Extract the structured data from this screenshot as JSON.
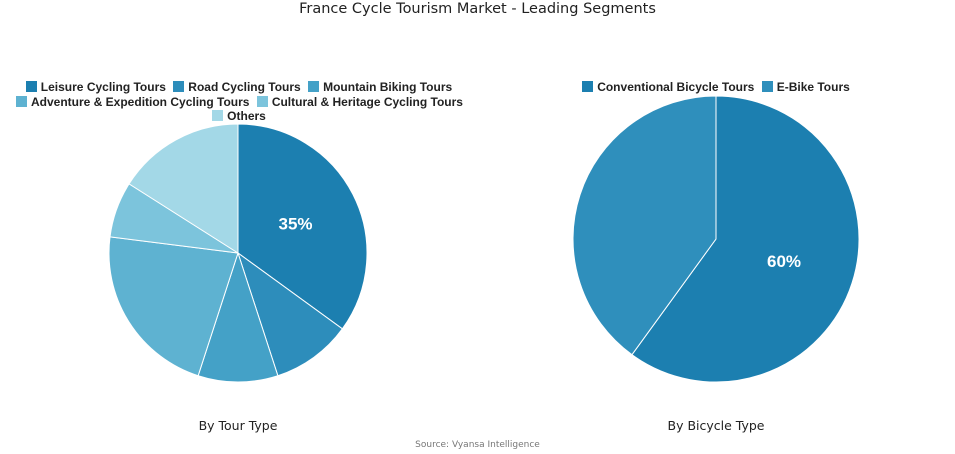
{
  "title": "France Cycle Tourism Market - Leading Segments",
  "source": "Source: Vyansa Intelligence",
  "chart_data": [
    {
      "type": "pie",
      "subtitle": "By Tour Type",
      "legend_position": "top",
      "labels": [
        "Leisure Cycling Tours",
        "Road Cycling Tours",
        "Mountain Biking Tours",
        "Adventure & Expedition Cycling Tours",
        "Cultural & Heritage Cycling Tours",
        "Others"
      ],
      "values": [
        35,
        10,
        10,
        22,
        7,
        16
      ],
      "data_labels": [
        "35%",
        "",
        "",
        "",
        "",
        ""
      ],
      "colors": [
        "#1c7fb0",
        "#2d8dbb",
        "#44a1c7",
        "#5eb2d1",
        "#7cc4dc",
        "#a3d8e7"
      ]
    },
    {
      "type": "pie",
      "subtitle": "By Bicycle Type",
      "legend_position": "top",
      "labels": [
        "Conventional Bicycle Tours",
        "E-Bike Tours"
      ],
      "values": [
        60,
        40
      ],
      "data_labels": [
        "60%",
        ""
      ],
      "colors": [
        "#1c7fb0",
        "#2f8fbc"
      ]
    }
  ]
}
